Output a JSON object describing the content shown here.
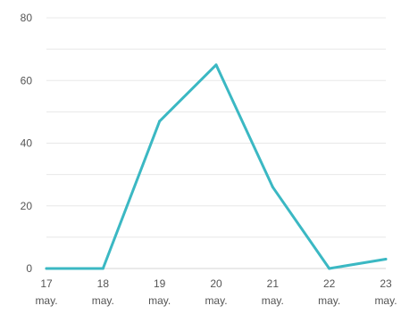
{
  "chart_data": {
    "type": "line",
    "x": [
      [
        "17",
        "may."
      ],
      [
        "18",
        "may."
      ],
      [
        "19",
        "may."
      ],
      [
        "20",
        "may."
      ],
      [
        "21",
        "may."
      ],
      [
        "22",
        "may."
      ],
      [
        "23",
        "may."
      ]
    ],
    "series": [
      {
        "values": [
          0,
          0,
          47,
          65,
          26,
          0,
          3
        ],
        "color": "#3bb8c3"
      }
    ],
    "yticks": [
      0,
      20,
      40,
      60,
      80
    ],
    "ylim": [
      0,
      80
    ],
    "grid": true,
    "legend": "none"
  }
}
